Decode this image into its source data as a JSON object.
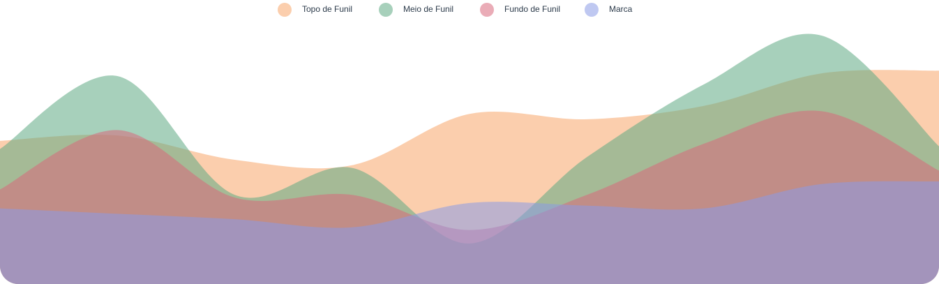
{
  "chart_data": {
    "type": "area",
    "categories": [
      null,
      null,
      null,
      null,
      null,
      null,
      null,
      null,
      null
    ],
    "ylim": [
      0,
      100
    ],
    "series": [
      {
        "name": "Topo de Funil",
        "color": "#f7a56a",
        "values": [
          53,
          55,
          46,
          44,
          63,
          61,
          66,
          78,
          79
        ]
      },
      {
        "name": "Meio de Funil",
        "color": "#5fa983",
        "values": [
          50,
          77,
          33,
          43,
          15,
          47,
          74,
          92,
          51
        ]
      },
      {
        "name": "Fundo de Funil",
        "color": "#d9687c",
        "values": [
          35,
          57,
          32,
          33,
          20,
          33,
          52,
          64,
          42
        ]
      },
      {
        "name": "Marca",
        "color": "#8b9be6",
        "values": [
          28,
          26,
          24,
          21,
          30,
          29,
          28,
          37,
          38
        ]
      }
    ]
  }
}
